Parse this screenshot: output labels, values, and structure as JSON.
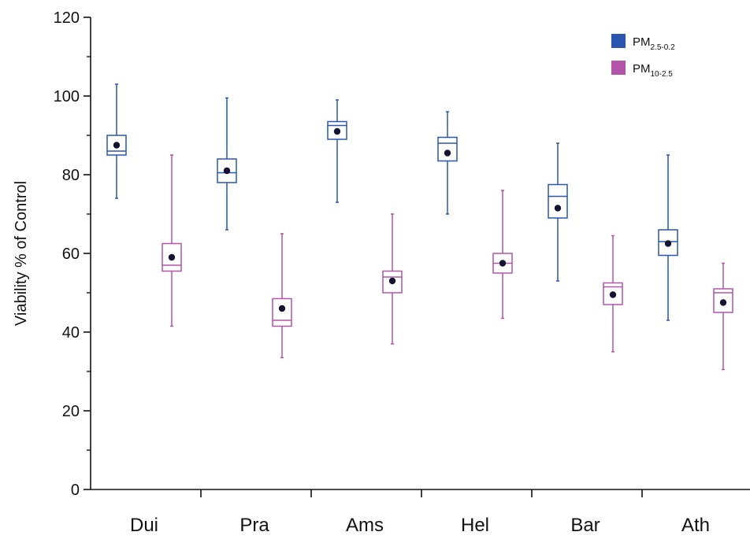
{
  "chart_data": {
    "type": "box",
    "title": "",
    "xlabel": "",
    "ylabel": "Viability % of Control",
    "ylim": [
      0,
      120
    ],
    "yticks": [
      0,
      20,
      40,
      60,
      80,
      100,
      120
    ],
    "categories": [
      "Dui",
      "Pra",
      "Ams",
      "Hel",
      "Bar",
      "Ath"
    ],
    "legend_position": "top-right",
    "series": [
      {
        "name": "PM",
        "name_sub": "2.5-0.2",
        "color": "#2a56b0",
        "boxes": [
          {
            "min": 74,
            "q1": 85,
            "median": 86,
            "q3": 90,
            "max": 103,
            "mean": 87.5
          },
          {
            "min": 66,
            "q1": 78,
            "median": 80.5,
            "q3": 84,
            "max": 99.5,
            "mean": 81
          },
          {
            "min": 73,
            "q1": 89,
            "median": 92.5,
            "q3": 93.5,
            "max": 99,
            "mean": 91
          },
          {
            "min": 70,
            "q1": 83.5,
            "median": 88,
            "q3": 89.5,
            "max": 96,
            "mean": 85.5
          },
          {
            "min": 53,
            "q1": 69,
            "median": 74.5,
            "q3": 77.5,
            "max": 88,
            "mean": 71.5
          },
          {
            "min": 43,
            "q1": 59.5,
            "median": 63,
            "q3": 66,
            "max": 85,
            "mean": 62.5
          }
        ]
      },
      {
        "name": "PM",
        "name_sub": "10-2.5",
        "color": "#b255a8",
        "boxes": [
          {
            "min": 41.5,
            "q1": 55.5,
            "median": 57,
            "q3": 62.5,
            "max": 85,
            "mean": 59
          },
          {
            "min": 33.5,
            "q1": 41.5,
            "median": 43,
            "q3": 48.5,
            "max": 65,
            "mean": 46
          },
          {
            "min": 37,
            "q1": 50,
            "median": 54,
            "q3": 55.5,
            "max": 70,
            "mean": 53
          },
          {
            "min": 43.5,
            "q1": 55,
            "median": 57.5,
            "q3": 60,
            "max": 76,
            "mean": 57.5
          },
          {
            "min": 35,
            "q1": 47,
            "median": 51.5,
            "q3": 52.5,
            "max": 64.5,
            "mean": 49.5
          },
          {
            "min": 30.5,
            "q1": 45,
            "median": 50,
            "q3": 51,
            "max": 57.5,
            "mean": 47.5
          }
        ]
      }
    ]
  }
}
